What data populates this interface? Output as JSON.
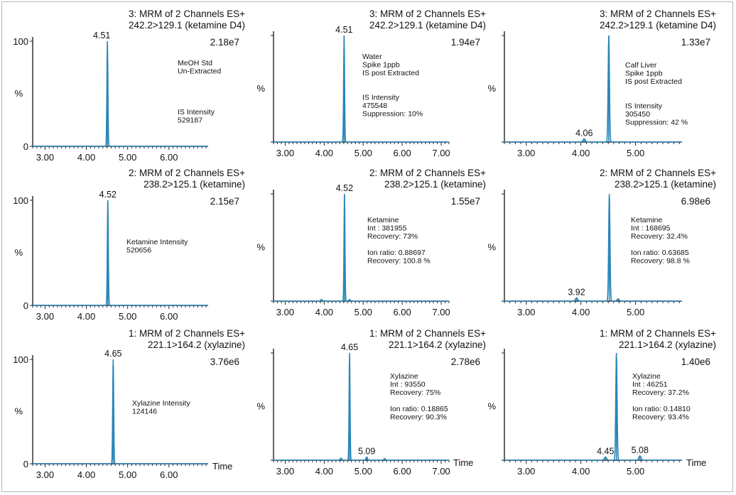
{
  "colors": {
    "trace": "#2a86b8",
    "axis": "#222222",
    "frame": "#b5b5b5"
  },
  "chart_data": [
    {
      "type": "line",
      "row": 0,
      "col": 0,
      "title_lines": [
        "3: MRM of 2 Channels ES+",
        "242.2>129.1 (ketamine D4)"
      ],
      "max_intensity": "2.18e7",
      "y_ticks": [
        "0",
        "100"
      ],
      "ylabel": "%",
      "x_ticks": [
        "3.00",
        "4.00",
        "5.00",
        "6.00"
      ],
      "xlim": [
        2.7,
        6.95
      ],
      "xlabel": "",
      "annotation_lines": [
        "MeOH  Std",
        "Un-Extracted",
        "",
        "",
        "",
        "",
        "IS Intensity",
        "529187"
      ],
      "peak_labels": [
        {
          "text": "4.51",
          "x": 4.51
        }
      ],
      "peaks": [
        {
          "rt": 4.51,
          "height": 100,
          "width": 0.012
        }
      ]
    },
    {
      "type": "line",
      "row": 0,
      "col": 1,
      "title_lines": [
        "3: MRM of 2 Channels ES+",
        "242.2>129.1 (ketamine D4)"
      ],
      "max_intensity": "1.94e7",
      "y_ticks": [],
      "ylabel": "%",
      "x_ticks": [
        "3.00",
        "4.00",
        "5.00",
        "6.00",
        "7.00"
      ],
      "xlim": [
        2.7,
        7.2
      ],
      "xlabel": "",
      "annotation_lines": [
        "Water",
        "Spike 1ppb",
        "IS post Extracted",
        "",
        "",
        "IS Intensity",
        "475548",
        "Suppression: 10%"
      ],
      "peak_labels": [
        {
          "text": "4.51",
          "x": 4.51
        }
      ],
      "peaks": [
        {
          "rt": 4.51,
          "height": 100,
          "width": 0.012
        }
      ]
    },
    {
      "type": "line",
      "row": 0,
      "col": 2,
      "title_lines": [
        "3: MRM of 2 Channels ES+",
        "242.2>129.1 (ketamine D4)"
      ],
      "max_intensity": "1.33e7",
      "y_ticks": [],
      "ylabel": "%",
      "x_ticks": [
        "3.00",
        "4.00",
        "5.00"
      ],
      "xlim": [
        2.6,
        5.85
      ],
      "xlabel": "",
      "annotation_lines": [
        "Calf Liver",
        "Spike 1ppb",
        "IS post Extracted",
        "",
        "",
        "IS Intensity",
        "305450",
        "Suppression: 42 %"
      ],
      "peak_labels": [
        {
          "text": "4.06",
          "x": 4.06
        }
      ],
      "peaks": [
        {
          "rt": 4.51,
          "height": 100,
          "width": 0.012
        },
        {
          "rt": 4.06,
          "height": 3,
          "width": 0.02
        }
      ]
    },
    {
      "type": "line",
      "row": 1,
      "col": 0,
      "title_lines": [
        "2: MRM of 2 Channels ES+",
        "238.2>125.1 (ketamine)"
      ],
      "max_intensity": "2.15e7",
      "y_ticks": [
        "0",
        "100"
      ],
      "ylabel": "%",
      "x_ticks": [
        "3.00",
        "4.00",
        "5.00",
        "6.00"
      ],
      "xlim": [
        2.7,
        6.95
      ],
      "xlabel": "",
      "annotation_lines": [
        "Ketamine Intensity",
        "520656"
      ],
      "peak_labels": [
        {
          "text": "4.52",
          "x": 4.52
        }
      ],
      "peaks": [
        {
          "rt": 4.52,
          "height": 100,
          "width": 0.012
        }
      ]
    },
    {
      "type": "line",
      "row": 1,
      "col": 1,
      "title_lines": [
        "2: MRM of 2 Channels ES+",
        "238.2>125.1 (ketamine)"
      ],
      "max_intensity": "1.55e7",
      "y_ticks": [],
      "ylabel": "%",
      "x_ticks": [
        "3.00",
        "4.00",
        "5.00",
        "6.00",
        "7.00"
      ],
      "xlim": [
        2.7,
        7.2
      ],
      "xlabel": "",
      "annotation_lines": [
        "Ketamine",
        "Int : 381955",
        "Recovery: 73%",
        "",
        "Ion ratio: 0.88697",
        "Recovery: 100.8 %"
      ],
      "peak_labels": [
        {
          "text": "4.52",
          "x": 4.52
        }
      ],
      "peaks": [
        {
          "rt": 4.52,
          "height": 100,
          "width": 0.012
        },
        {
          "rt": 3.93,
          "height": 1.5,
          "width": 0.02
        },
        {
          "rt": 4.65,
          "height": 1.5,
          "width": 0.02
        }
      ]
    },
    {
      "type": "line",
      "row": 1,
      "col": 2,
      "title_lines": [
        "2: MRM of 2 Channels ES+",
        "238.2>125.1 (ketamine)"
      ],
      "max_intensity": "6.98e6",
      "y_ticks": [],
      "ylabel": "%",
      "x_ticks": [
        "3.00",
        "4.00",
        "5.00"
      ],
      "xlim": [
        2.6,
        5.85
      ],
      "xlabel": "",
      "annotation_lines": [
        "Ketamine",
        "Int : 168695",
        "Recovery: 32.4%",
        "",
        "Ion ratio: 0.63685",
        "Recovery: 98.8 %"
      ],
      "peak_labels": [
        {
          "text": "3.92",
          "x": 3.92
        }
      ],
      "peaks": [
        {
          "rt": 4.52,
          "height": 100,
          "width": 0.012
        },
        {
          "rt": 3.92,
          "height": 3,
          "width": 0.02
        },
        {
          "rt": 4.68,
          "height": 2,
          "width": 0.02
        }
      ]
    },
    {
      "type": "line",
      "row": 2,
      "col": 0,
      "title_lines": [
        "1: MRM of 2 Channels ES+",
        "221.1>164.2 (xylazine)"
      ],
      "max_intensity": "3.76e6",
      "y_ticks": [
        "0",
        "100"
      ],
      "ylabel": "%",
      "x_ticks": [
        "3.00",
        "4.00",
        "5.00",
        "6.00"
      ],
      "xlim": [
        2.7,
        6.95
      ],
      "xlabel": "Time",
      "annotation_lines": [
        "Xylazine Intensity",
        "124146"
      ],
      "peak_labels": [
        {
          "text": "4.65",
          "x": 4.65
        }
      ],
      "peaks": [
        {
          "rt": 4.65,
          "height": 100,
          "width": 0.012
        }
      ]
    },
    {
      "type": "line",
      "row": 2,
      "col": 1,
      "title_lines": [
        "1: MRM of 2 Channels ES+",
        "221.1>164.2 (xylazine)"
      ],
      "max_intensity": "2.78e6",
      "y_ticks": [],
      "ylabel": "%",
      "x_ticks": [
        "3.00",
        "4.00",
        "5.00",
        "6.00",
        "7.00"
      ],
      "xlim": [
        2.7,
        7.2
      ],
      "xlabel": "Time",
      "annotation_lines": [
        "Xylazine",
        "Int : 93550",
        "Recovery: 75%",
        "",
        "Ion ratio: 0.18865",
        "Recovery: 90.3%"
      ],
      "peak_labels": [
        {
          "text": "4.65",
          "x": 4.65
        },
        {
          "text": "5.09",
          "x": 5.09
        }
      ],
      "peaks": [
        {
          "rt": 4.65,
          "height": 100,
          "width": 0.012
        },
        {
          "rt": 5.09,
          "height": 3,
          "width": 0.02
        },
        {
          "rt": 4.43,
          "height": 2,
          "width": 0.02
        },
        {
          "rt": 5.55,
          "height": 1.5,
          "width": 0.02
        }
      ]
    },
    {
      "type": "line",
      "row": 2,
      "col": 2,
      "title_lines": [
        "1: MRM of 2 Channels ES+",
        "221.1>164.2 (xylazine)"
      ],
      "max_intensity": "1.40e6",
      "y_ticks": [],
      "ylabel": "%",
      "x_ticks": [
        "3.00",
        "4.00",
        "5.00"
      ],
      "xlim": [
        2.6,
        5.85
      ],
      "xlabel": "Time",
      "annotation_lines": [
        "Xylazine",
        "Int : 46251",
        "Recovery: 37.2%",
        "",
        "Ion ratio: 0.14810",
        "Recovery: 93.4%"
      ],
      "peak_labels": [
        {
          "text": "4.45",
          "x": 4.45
        },
        {
          "text": "5.08",
          "x": 5.08
        }
      ],
      "peaks": [
        {
          "rt": 4.65,
          "height": 100,
          "width": 0.012
        },
        {
          "rt": 4.45,
          "height": 3,
          "width": 0.02
        },
        {
          "rt": 5.08,
          "height": 4,
          "width": 0.02
        }
      ]
    }
  ]
}
